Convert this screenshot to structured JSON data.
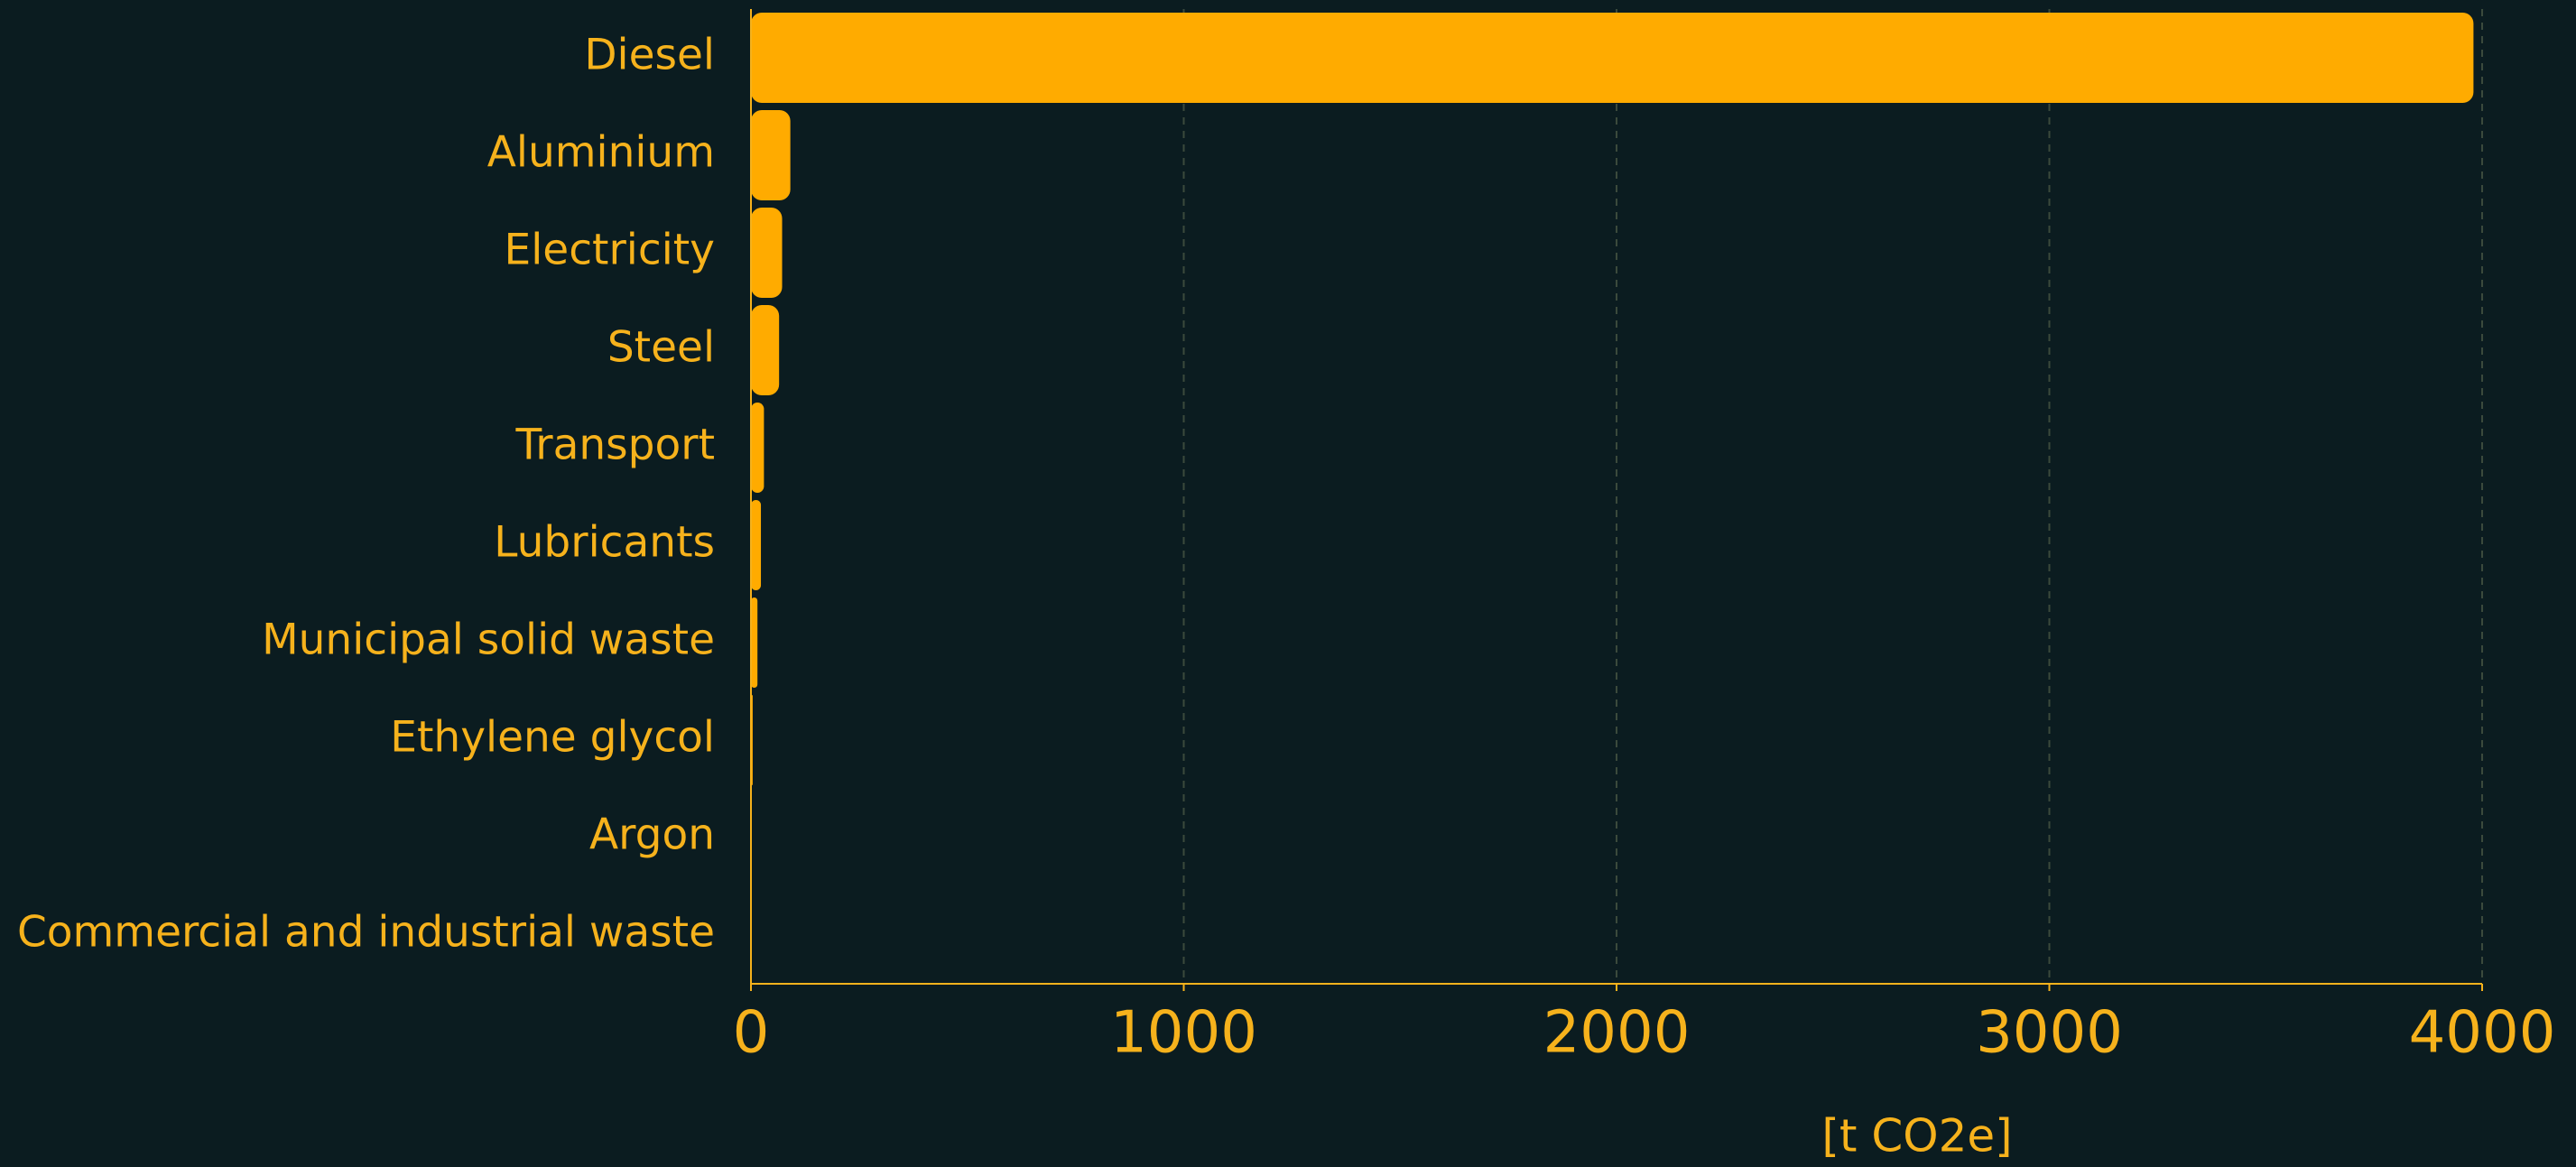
{
  "chart_data": {
    "type": "barh",
    "categories": [
      "Diesel",
      "Aluminium",
      "Electricity",
      "Steel",
      "Transport",
      "Lubricants",
      "Municipal solid waste",
      "Ethylene glycol",
      "Argon",
      "Commercial and industrial waste"
    ],
    "values": [
      3980,
      91,
      72,
      65,
      30,
      23,
      15,
      4,
      2,
      1
    ],
    "color": "#ffab00",
    "x_label": "[t CO2e]",
    "xlim": [
      0,
      4000
    ],
    "xticks": [
      0,
      1000,
      2000,
      3000,
      4000
    ],
    "grid": true
  }
}
